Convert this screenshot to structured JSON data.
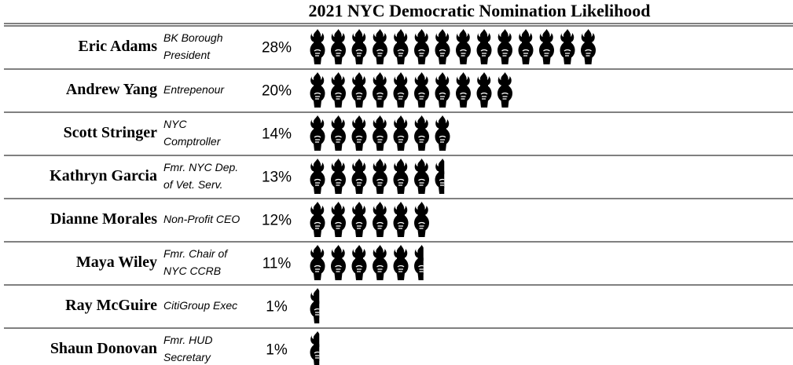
{
  "chart_data": {
    "type": "pictograph",
    "title": "2021 NYC Democratic Nomination Likelihood",
    "categories": [
      "Eric Adams",
      "Andrew Yang",
      "Scott Stringer",
      "Kathryn Garcia",
      "Dianne Morales",
      "Maya Wiley",
      "Ray McGuire",
      "Shaun Donovan"
    ],
    "descriptions": [
      [
        "BK Borough",
        "President"
      ],
      [
        "Entrepenour"
      ],
      [
        "NYC",
        "Comptroller"
      ],
      [
        "Fmr. NYC Dep.",
        "of Vet. Serv."
      ],
      [
        "Non-Profit CEO"
      ],
      [
        "Fmr. Chair of",
        "NYC CCRB"
      ],
      [
        "CitiGroup Exec"
      ],
      [
        "Fmr. HUD",
        "Secretary"
      ]
    ],
    "values": [
      28,
      20,
      14,
      13,
      12,
      11,
      1,
      1
    ],
    "value_labels": [
      "28%",
      "20%",
      "14%",
      "13%",
      "12%",
      "11%",
      "1%",
      "1%"
    ],
    "color": "#000000"
  }
}
